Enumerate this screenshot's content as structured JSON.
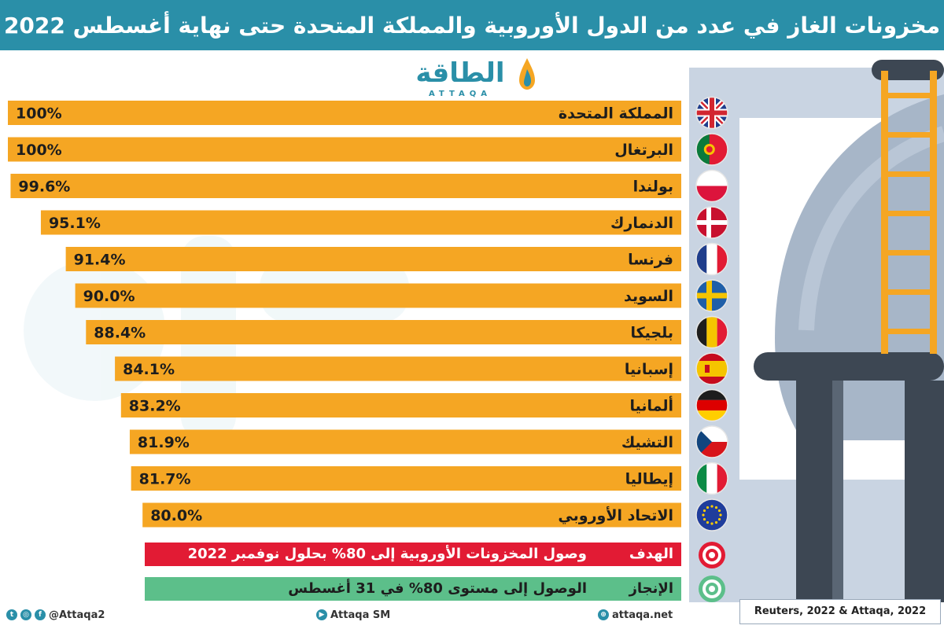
{
  "title": "مخزونات الغاز في عدد من الدول الأوروبية والمملكة المتحدة حتى نهاية أغسطس 2022",
  "logo": {
    "word": "الطاقة",
    "sub": "ATTAQA"
  },
  "colors": {
    "bar": "#f5a623",
    "title_bg": "#2a8fa8",
    "target": "#e21b34",
    "achievement": "#5cbf8a",
    "text": "#1d1d1d"
  },
  "chart_data": {
    "type": "bar",
    "orientation": "horizontal",
    "unit": "%",
    "categories": [
      "المملكة المتحدة",
      "البرتغال",
      "بولندا",
      "الدنمارك",
      "فرنسا",
      "السويد",
      "بلجيكا",
      "إسبانيا",
      "ألمانيا",
      "التشيك",
      "إيطاليا",
      "الاتحاد الأوروبي"
    ],
    "values": [
      100,
      100,
      99.6,
      95.1,
      91.4,
      90.0,
      88.4,
      84.1,
      83.2,
      81.9,
      81.7,
      80.0
    ],
    "value_labels": [
      "100%",
      "100%",
      "99.6%",
      "95.1%",
      "91.4%",
      "90.0%",
      "88.4%",
      "84.1%",
      "83.2%",
      "81.9%",
      "81.7%",
      "80.0%"
    ],
    "flags": [
      "uk",
      "portugal",
      "poland",
      "denmark",
      "france",
      "sweden",
      "belgium",
      "spain",
      "germany",
      "czech",
      "italy",
      "eu"
    ],
    "xlim": [
      0,
      100
    ]
  },
  "legend": {
    "target": {
      "label": "الهدف",
      "text": "وصول المخزونات الأوروبية إلى 80% بحلول نوفمبر 2022",
      "icon": "target-icon"
    },
    "achievement": {
      "label": "الإنجاز",
      "text": "الوصول إلى مستوى 80% في 31 أغسطس",
      "icon": "achieved-target-icon"
    }
  },
  "footer": {
    "social": "@Attaqa2",
    "youtube": "Attaqa SM",
    "site": "attaqa.net",
    "source": "Reuters, 2022 & Attaqa, 2022"
  }
}
